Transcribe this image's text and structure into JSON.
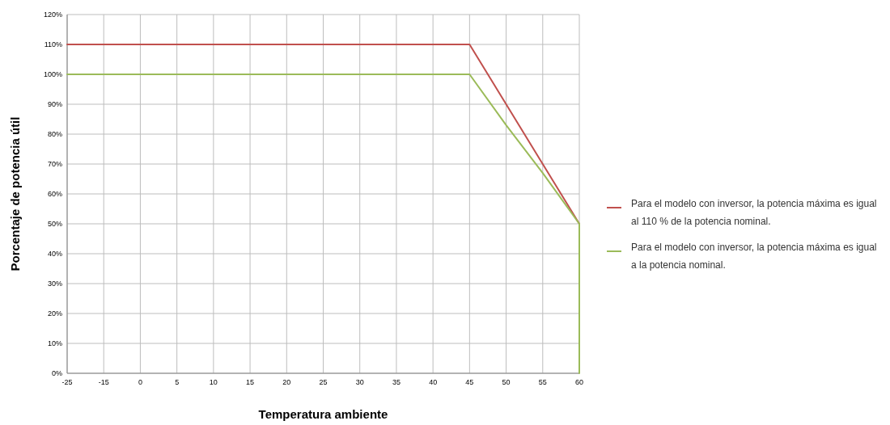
{
  "chart_data": {
    "type": "line",
    "xlabel": "Temperatura ambiente",
    "ylabel": "Porcentaje de potencia útil",
    "categories": [
      "-25",
      "-15",
      "0",
      "5",
      "10",
      "15",
      "20",
      "25",
      "30",
      "35",
      "40",
      "45",
      "50",
      "55",
      "60"
    ],
    "series": [
      {
        "name": "Para el modelo con inversor, la potencia máxima es igual al 110 % de la potencia nominal.",
        "color": "#c0504d",
        "values": [
          110,
          110,
          110,
          110,
          110,
          110,
          110,
          110,
          110,
          110,
          110,
          110,
          90,
          70,
          50
        ]
      },
      {
        "name": "Para el modelo con inversor, la potencia máxima es igual a la potencia nominal.",
        "color": "#9bbb59",
        "x": [
          "-25",
          "-15",
          "0",
          "5",
          "10",
          "15",
          "20",
          "25",
          "30",
          "35",
          "40",
          "45",
          "50",
          "55",
          "60",
          "60"
        ],
        "values": [
          100,
          100,
          100,
          100,
          100,
          100,
          100,
          100,
          100,
          100,
          100,
          100,
          83,
          67,
          50,
          0
        ]
      }
    ],
    "ylim": [
      0,
      120
    ],
    "yticks": [
      {
        "value": 0,
        "label": "0%"
      },
      {
        "value": 10,
        "label": "10%"
      },
      {
        "value": 20,
        "label": "20%"
      },
      {
        "value": 30,
        "label": "30%"
      },
      {
        "value": 40,
        "label": "40%"
      },
      {
        "value": 50,
        "label": "50%"
      },
      {
        "value": 60,
        "label": "60%"
      },
      {
        "value": 70,
        "label": "70%"
      },
      {
        "value": 80,
        "label": "80%"
      },
      {
        "value": 90,
        "label": "90%"
      },
      {
        "value": 100,
        "label": "100%"
      },
      {
        "value": 110,
        "label": "110%"
      },
      {
        "value": 120,
        "label": "120%"
      }
    ],
    "grid": true,
    "legend": "right",
    "marker": "none",
    "line_style": "solid"
  }
}
